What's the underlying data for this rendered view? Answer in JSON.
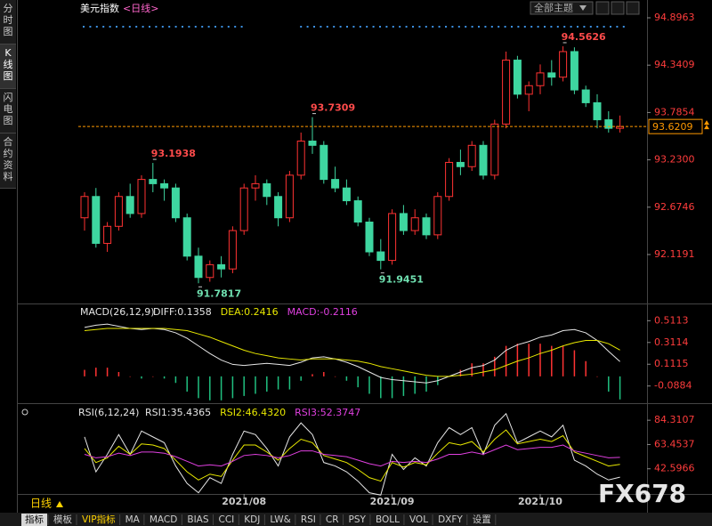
{
  "header": {
    "title": "美元指数",
    "period": "<日线>",
    "theme_button": "全部主题"
  },
  "sidebar_tabs": [
    "分时图",
    "K线图",
    "闪电图",
    "合约资料"
  ],
  "chart_data": [
    {
      "type": "candlestick",
      "up_color": "#ff3232",
      "down_color": "#3ed6a0",
      "ylim": [
        91.555,
        95.053
      ],
      "yticks": [
        94.8963,
        94.3409,
        93.7854,
        {
          "value": 93.23,
          "label": "93.2300"
        },
        92.6746,
        92.1191
      ],
      "last_price": 93.6209,
      "last_color": "#ff9900",
      "candles": [
        [
          92.55,
          92.85,
          92.4,
          92.8
        ],
        [
          92.8,
          92.9,
          92.2,
          92.25
        ],
        [
          92.25,
          92.5,
          92.15,
          92.45
        ],
        [
          92.45,
          92.85,
          92.4,
          92.8
        ],
        [
          92.8,
          92.95,
          92.55,
          92.6
        ],
        [
          92.6,
          93.05,
          92.55,
          93.0
        ],
        [
          93.0,
          93.1938,
          92.85,
          92.95
        ],
        [
          92.95,
          93.0,
          92.75,
          92.9
        ],
        [
          92.9,
          92.95,
          92.5,
          92.55
        ],
        [
          92.55,
          92.6,
          92.05,
          92.1
        ],
        [
          92.1,
          92.2,
          91.7817,
          91.85
        ],
        [
          91.85,
          92.05,
          91.8,
          92.0
        ],
        [
          92.0,
          92.1,
          91.85,
          91.95
        ],
        [
          91.95,
          92.45,
          91.9,
          92.4
        ],
        [
          92.4,
          92.95,
          92.35,
          92.9
        ],
        [
          92.9,
          93.05,
          92.75,
          92.95
        ],
        [
          92.95,
          93.0,
          92.7,
          92.8
        ],
        [
          92.8,
          92.85,
          92.45,
          92.55
        ],
        [
          92.55,
          93.1,
          92.5,
          93.05
        ],
        [
          93.05,
          93.55,
          93.0,
          93.45
        ],
        [
          93.45,
          93.7309,
          93.3,
          93.4
        ],
        [
          93.4,
          93.45,
          92.95,
          93.0
        ],
        [
          93.0,
          93.15,
          92.85,
          92.9
        ],
        [
          92.9,
          93.0,
          92.7,
          92.75
        ],
        [
          92.75,
          92.8,
          92.45,
          92.5
        ],
        [
          92.5,
          92.55,
          92.1,
          92.15
        ],
        [
          92.15,
          92.3,
          91.9451,
          92.05
        ],
        [
          92.05,
          92.65,
          92.0,
          92.6
        ],
        [
          92.6,
          92.7,
          92.35,
          92.4
        ],
        [
          92.4,
          92.65,
          92.35,
          92.55
        ],
        [
          92.55,
          92.6,
          92.3,
          92.35
        ],
        [
          92.35,
          92.85,
          92.3,
          92.8
        ],
        [
          92.8,
          93.25,
          92.75,
          93.2
        ],
        [
          93.2,
          93.35,
          93.05,
          93.15
        ],
        [
          93.15,
          93.45,
          93.1,
          93.4
        ],
        [
          93.4,
          93.45,
          93.0,
          93.05
        ],
        [
          93.05,
          93.7,
          93.0,
          93.65
        ],
        [
          93.65,
          94.5,
          93.6,
          94.4
        ],
        [
          94.4,
          94.45,
          93.95,
          94.0
        ],
        [
          94.0,
          94.15,
          93.8,
          94.1
        ],
        [
          94.1,
          94.35,
          94.0,
          94.25
        ],
        [
          94.25,
          94.4,
          94.1,
          94.2
        ],
        [
          94.2,
          94.5626,
          94.15,
          94.5
        ],
        [
          94.5,
          94.55,
          94.0,
          94.05
        ],
        [
          94.05,
          94.1,
          93.85,
          93.9
        ],
        [
          93.9,
          94.0,
          93.6,
          93.7
        ],
        [
          93.7,
          93.8,
          93.55,
          93.6
        ],
        [
          93.6,
          93.75,
          93.55,
          93.6209
        ]
      ]
    },
    {
      "type": "macd",
      "header": "MACD(26,12,9)",
      "ylim": [
        -0.238,
        0.653
      ],
      "yticks": [
        0.5113,
        0.3114,
        0.1115,
        -0.0884
      ],
      "series": [
        {
          "name": "DIFF:0.1358",
          "color": "#e6e6e6",
          "style": "line",
          "values": [
            0.45,
            0.47,
            0.48,
            0.46,
            0.44,
            0.43,
            0.44,
            0.43,
            0.4,
            0.35,
            0.28,
            0.21,
            0.15,
            0.11,
            0.1,
            0.11,
            0.12,
            0.11,
            0.1,
            0.13,
            0.17,
            0.18,
            0.16,
            0.13,
            0.09,
            0.04,
            -0.01,
            -0.03,
            -0.04,
            -0.05,
            -0.06,
            -0.04,
            0.0,
            0.04,
            0.08,
            0.1,
            0.15,
            0.24,
            0.29,
            0.32,
            0.36,
            0.38,
            0.42,
            0.43,
            0.4,
            0.33,
            0.23,
            0.1358
          ]
        },
        {
          "name": "DEA:0.2416",
          "color": "#e8e800",
          "style": "line",
          "values": [
            0.42,
            0.43,
            0.44,
            0.44,
            0.44,
            0.44,
            0.44,
            0.44,
            0.43,
            0.42,
            0.39,
            0.36,
            0.32,
            0.28,
            0.24,
            0.21,
            0.19,
            0.17,
            0.16,
            0.15,
            0.16,
            0.16,
            0.16,
            0.15,
            0.14,
            0.12,
            0.09,
            0.07,
            0.05,
            0.03,
            0.01,
            0.0,
            0.0,
            0.01,
            0.02,
            0.04,
            0.06,
            0.1,
            0.14,
            0.17,
            0.21,
            0.24,
            0.28,
            0.31,
            0.33,
            0.33,
            0.3,
            0.2416
          ]
        },
        {
          "name": "MACD:-0.2116",
          "color": "#e040e0",
          "style": "bar",
          "up_color": "#ff3232",
          "down_color": "#20c080",
          "values": [
            0.06,
            0.08,
            0.08,
            0.04,
            0,
            -0.02,
            0,
            -0.02,
            -0.06,
            -0.14,
            -0.2,
            -0.22,
            -0.22,
            -0.2,
            -0.18,
            -0.16,
            -0.14,
            -0.12,
            -0.12,
            -0.04,
            0.02,
            0.04,
            0,
            -0.04,
            -0.1,
            -0.16,
            -0.2,
            -0.2,
            -0.18,
            -0.16,
            -0.14,
            -0.08,
            0,
            0.06,
            0.12,
            0.12,
            0.18,
            0.28,
            0.3,
            0.3,
            0.3,
            0.28,
            0.28,
            0.24,
            0.14,
            0,
            -0.14,
            -0.2116
          ]
        }
      ]
    },
    {
      "type": "rsi",
      "header": "RSI(6,12,24)",
      "ylim": [
        21.74,
        96.67
      ],
      "yticks": [
        84.3107,
        63.4537,
        42.5966
      ],
      "categories": [
        null,
        null,
        null,
        null,
        null,
        null,
        null,
        null,
        null,
        null,
        null,
        null,
        null,
        null,
        "2021/08",
        null,
        null,
        null,
        null,
        null,
        null,
        null,
        null,
        null,
        null,
        null,
        null,
        "2021/09",
        null,
        null,
        null,
        null,
        null,
        null,
        null,
        null,
        null,
        null,
        null,
        null,
        "2021/10",
        null,
        null,
        null,
        null,
        null,
        null,
        null
      ],
      "series": [
        {
          "name": "RSI1:35.4365",
          "color": "#e6e6e6",
          "values": [
            70,
            40,
            55,
            72,
            55,
            75,
            70,
            65,
            45,
            30,
            22,
            35,
            30,
            55,
            75,
            72,
            60,
            45,
            70,
            82,
            72,
            48,
            45,
            40,
            32,
            22,
            20,
            55,
            42,
            52,
            45,
            65,
            78,
            72,
            78,
            55,
            80,
            90,
            65,
            70,
            75,
            70,
            80,
            50,
            45,
            38,
            33,
            35.4365
          ]
        },
        {
          "name": "RSI2:46.4320",
          "color": "#e8e800",
          "values": [
            60,
            48,
            52,
            62,
            55,
            64,
            63,
            60,
            50,
            40,
            33,
            38,
            36,
            50,
            63,
            63,
            57,
            50,
            60,
            68,
            65,
            54,
            51,
            48,
            42,
            35,
            32,
            48,
            44,
            48,
            46,
            56,
            65,
            63,
            66,
            57,
            68,
            76,
            64,
            66,
            68,
            66,
            71,
            57,
            53,
            49,
            45,
            46.432
          ]
        },
        {
          "name": "RSI3:52.3747",
          "color": "#e040e0",
          "values": [
            55,
            52,
            53,
            56,
            54,
            57,
            57,
            56,
            53,
            49,
            45,
            46,
            45,
            49,
            54,
            55,
            54,
            52,
            54,
            58,
            58,
            55,
            54,
            53,
            50,
            47,
            45,
            49,
            48,
            49,
            48,
            51,
            55,
            55,
            57,
            55,
            59,
            63,
            59,
            60,
            61,
            61,
            63,
            58,
            56,
            54,
            52,
            52.3747
          ]
        }
      ]
    }
  ],
  "period_tab": "日线",
  "toolbar": [
    "指标",
    "模板",
    "VIP指标",
    "MA",
    "MACD",
    "BIAS",
    "CCI",
    "KDJ",
    "LW&",
    "RSI",
    "CR",
    "PSY",
    "BOLL",
    "VOL",
    "DXFY",
    "设置"
  ],
  "watermark": "FX678"
}
